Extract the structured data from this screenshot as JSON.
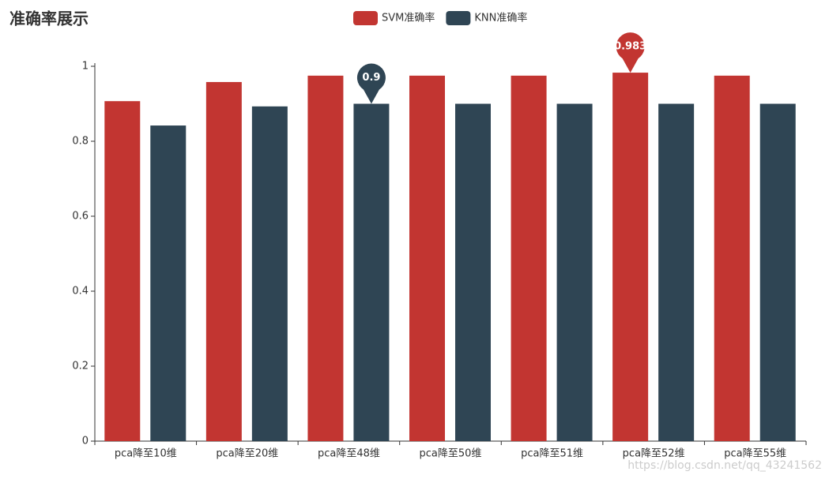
{
  "chart_data": {
    "type": "bar",
    "title": "准确率展示",
    "categories": [
      "pca降至10维",
      "pca降至20维",
      "pca降至48维",
      "pca降至50维",
      "pca降至51维",
      "pca降至52维",
      "pca降至55维"
    ],
    "series": [
      {
        "name": "SVM准确率",
        "color": "#c23531",
        "values": [
          0.907,
          0.958,
          0.975,
          0.975,
          0.975,
          0.983,
          0.975
        ],
        "mark_point": "max"
      },
      {
        "name": "KNN准确率",
        "color": "#2f4554",
        "values": [
          0.842,
          0.893,
          0.9,
          0.9,
          0.9,
          0.9,
          0.9
        ],
        "mark_point": "max"
      }
    ],
    "ylim": [
      0,
      1
    ],
    "yticks": [
      0,
      0.2,
      0.4,
      0.6,
      0.8,
      1
    ],
    "grid": false,
    "legend": "top",
    "watermark": "https://blog.csdn.net/qq_43241562"
  }
}
